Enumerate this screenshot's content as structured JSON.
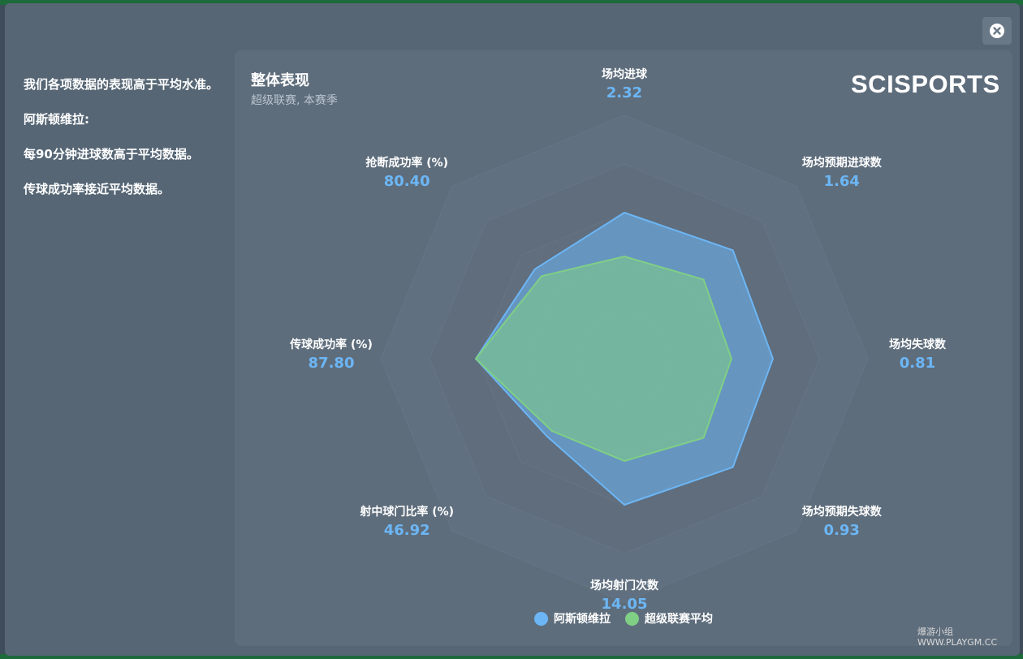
{
  "notes": [
    "我们各项数据的表现高于平均水准。",
    "阿斯顿维拉:",
    "每90分钟进球数高于平均数据。",
    "传球成功率接近平均数据。"
  ],
  "panel": {
    "title": "整体表现",
    "subtitle": "超级联赛, 本赛季",
    "logo_text": "SCISPORTS"
  },
  "close_icon": "close-icon",
  "colors": {
    "team": "#6cb6f5",
    "league": "#7fcf85",
    "modal_bg": "#566675",
    "panel_bg": "#5e6d7c"
  },
  "chart_data": {
    "type": "radar",
    "title": "整体表现",
    "subtitle": "超级联赛, 本赛季",
    "axes": [
      {
        "name": "场均进球",
        "value": "2.32"
      },
      {
        "name": "场均预期进球数",
        "value": "1.64"
      },
      {
        "name": "场均失球数",
        "value": "0.81"
      },
      {
        "name": "场均预期失球数",
        "value": "0.93"
      },
      {
        "name": "场均射门次数",
        "value": "14.05"
      },
      {
        "name": "射中球门比率 (%)",
        "value": "46.92"
      },
      {
        "name": "传球成功率 (%)",
        "value": "87.80"
      },
      {
        "name": "抢断成功率 (%)",
        "value": "80.40"
      }
    ],
    "series": [
      {
        "name": "阿斯顿维拉",
        "normalized": [
          0.6,
          0.63,
          0.61,
          0.63,
          0.6,
          0.45,
          0.61,
          0.52
        ]
      },
      {
        "name": "超级联赛平均",
        "normalized": [
          0.42,
          0.46,
          0.44,
          0.46,
          0.42,
          0.42,
          0.61,
          0.48
        ]
      }
    ],
    "legend": [
      "阿斯顿维拉",
      "超级联赛平均"
    ]
  },
  "watermark": {
    "line1": "爆游小组",
    "line2": "WWW.PLAYGM.CC"
  }
}
